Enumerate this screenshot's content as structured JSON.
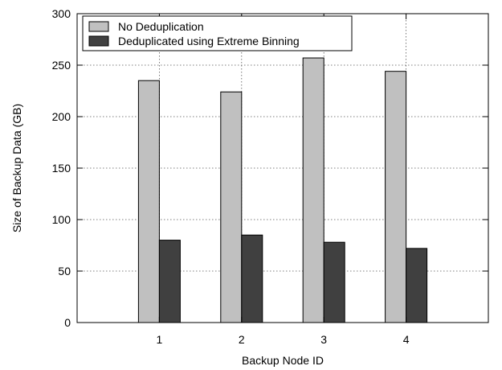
{
  "chart_data": {
    "type": "bar",
    "categories": [
      "1",
      "2",
      "3",
      "4"
    ],
    "series": [
      {
        "name": "No Deduplication",
        "values": [
          235,
          224,
          257,
          244
        ],
        "color": "#c0c0c0"
      },
      {
        "name": "Deduplicated using Extreme Binning",
        "values": [
          80,
          85,
          78,
          72
        ],
        "color": "#404040"
      }
    ],
    "xlabel": "Backup Node ID",
    "ylabel": "Size of Backup Data (GB)",
    "ylim": [
      0,
      300
    ],
    "yticks": [
      0,
      50,
      100,
      150,
      200,
      250,
      300
    ],
    "xrange": [
      0,
      5
    ],
    "grid": true,
    "legend_position": "top-left"
  }
}
